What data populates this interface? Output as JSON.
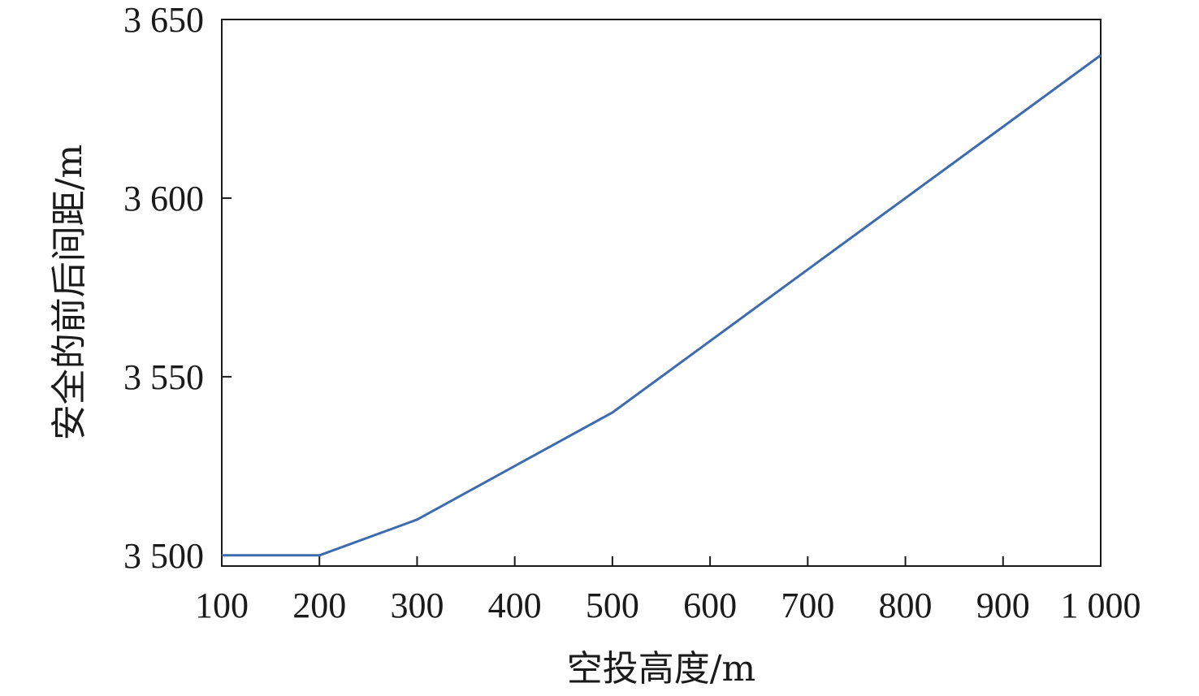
{
  "chart_data": {
    "type": "line",
    "title": "",
    "xlabel": "空投高度/m",
    "ylabel": "安全的前后间距/m",
    "x": [
      100,
      200,
      300,
      400,
      500,
      600,
      700,
      800,
      900,
      1000
    ],
    "x_tick_labels": [
      "100",
      "200",
      "300",
      "400",
      "500",
      "600",
      "700",
      "800",
      "900",
      "1 000"
    ],
    "y_tick_values": [
      3500,
      3550,
      3600,
      3650
    ],
    "y_tick_labels": [
      "3 500",
      "3 550",
      "3 600",
      "3 650"
    ],
    "xlim": [
      100,
      1000
    ],
    "ylim": [
      3497,
      3650
    ],
    "grid": false,
    "series": [
      {
        "values": [
          3500,
          3500,
          3510,
          3525,
          3540,
          3560,
          3580,
          3600,
          3620,
          3640
        ],
        "color": "#3d6bb0"
      }
    ]
  }
}
